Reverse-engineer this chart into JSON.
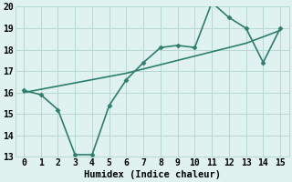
{
  "title": "",
  "xlabel": "Humidex (Indice chaleur)",
  "x_data": [
    0,
    1,
    2,
    3,
    4,
    5,
    6,
    7,
    8,
    9,
    10,
    11,
    12,
    13,
    14,
    15
  ],
  "y_line1": [
    16.1,
    15.9,
    15.2,
    13.1,
    13.1,
    15.4,
    16.6,
    17.4,
    18.1,
    18.2,
    18.1,
    20.2,
    19.5,
    19.0,
    17.4,
    19.0
  ],
  "y_line2": [
    16.0,
    16.15,
    16.3,
    16.45,
    16.6,
    16.75,
    16.9,
    17.1,
    17.3,
    17.5,
    17.7,
    17.9,
    18.1,
    18.3,
    18.6,
    18.9
  ],
  "line_color": "#2e7d6e",
  "bg_color": "#dff2f0",
  "grid_color": "#b8d8d4",
  "ylim": [
    13,
    20
  ],
  "xlim": [
    -0.5,
    15.5
  ],
  "yticks": [
    13,
    14,
    15,
    16,
    17,
    18,
    19,
    20
  ],
  "xticks": [
    0,
    1,
    2,
    3,
    4,
    5,
    6,
    7,
    8,
    9,
    10,
    11,
    12,
    13,
    14,
    15
  ],
  "marker": "D",
  "markersize": 2.5,
  "linewidth": 1.2,
  "xlabel_fontsize": 7.5,
  "tick_fontsize": 7
}
